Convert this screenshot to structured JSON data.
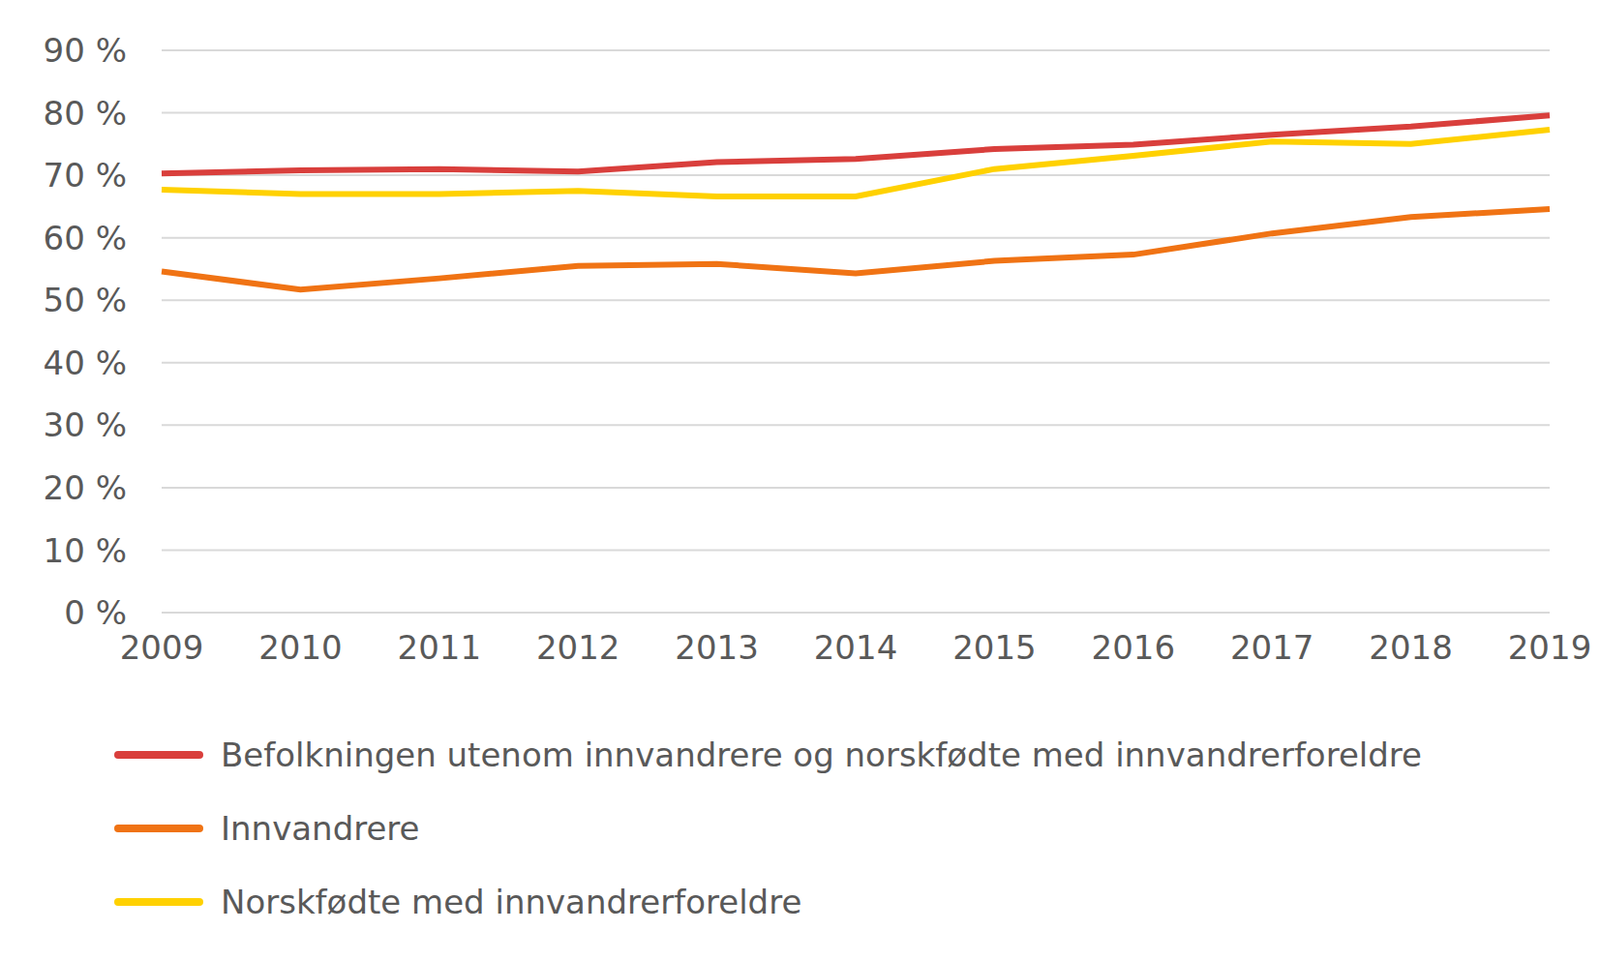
{
  "chart_data": {
    "type": "line",
    "categories": [
      "2009",
      "2010",
      "2011",
      "2012",
      "2013",
      "2014",
      "2015",
      "2016",
      "2017",
      "2018",
      "2019"
    ],
    "series": [
      {
        "name": "Befolkningen utenom innvandrere og norskfødte med innvandrerforeldre",
        "color": "#d93f3c",
        "values": [
          70.3,
          70.8,
          71.0,
          70.6,
          72.1,
          72.6,
          74.2,
          74.9,
          76.5,
          77.8,
          79.6
        ]
      },
      {
        "name": "Innvandrere",
        "color": "#f07314",
        "values": [
          54.6,
          51.7,
          53.5,
          55.5,
          55.8,
          54.3,
          56.3,
          57.3,
          60.7,
          63.3,
          64.6
        ]
      },
      {
        "name": "Norskfødte med innvandrerforeldre",
        "color": "#ffd100",
        "values": [
          67.7,
          67.0,
          67.0,
          67.5,
          66.6,
          66.6,
          71.0,
          73.1,
          75.4,
          75.0,
          77.3
        ]
      }
    ],
    "ylim": [
      0,
      90
    ],
    "yticks": [
      {
        "value": 0,
        "label": "0 %"
      },
      {
        "value": 10,
        "label": "10 %"
      },
      {
        "value": 20,
        "label": "20 %"
      },
      {
        "value": 30,
        "label": "30 %"
      },
      {
        "value": 40,
        "label": "40 %"
      },
      {
        "value": 50,
        "label": "50 %"
      },
      {
        "value": 60,
        "label": "60 %"
      },
      {
        "value": 70,
        "label": "70 %"
      },
      {
        "value": 80,
        "label": "80 %"
      },
      {
        "value": 90,
        "label": "90 %"
      }
    ],
    "grid": true,
    "legend": "bottom"
  }
}
